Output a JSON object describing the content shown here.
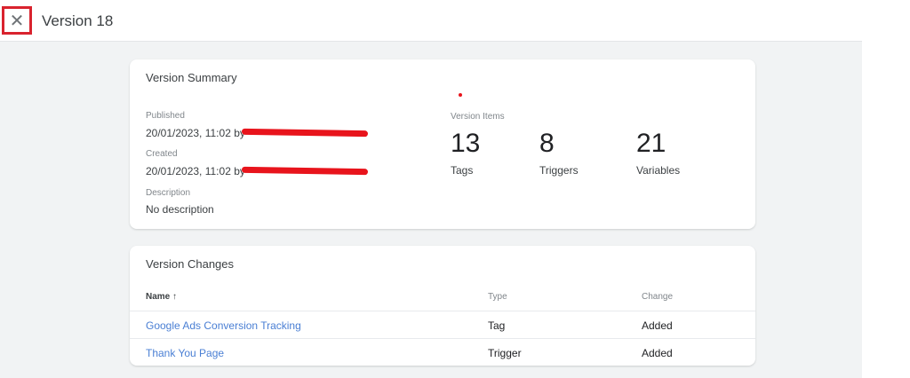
{
  "header": {
    "title": "Version 18",
    "close_icon": "close-icon"
  },
  "summary": {
    "title": "Version Summary",
    "published_label": "Published",
    "published_value": "20/01/2023, 11:02 by",
    "created_label": "Created",
    "created_value": "20/01/2023, 11:02 by",
    "description_label": "Description",
    "description_value": "No description",
    "items_label": "Version Items",
    "items": [
      {
        "count": "13",
        "label": "Tags"
      },
      {
        "count": "8",
        "label": "Triggers"
      },
      {
        "count": "21",
        "label": "Variables"
      }
    ]
  },
  "changes": {
    "title": "Version Changes",
    "columns": {
      "name": "Name",
      "type": "Type",
      "change": "Change"
    },
    "sort_icon": "arrow-up-icon",
    "rows": [
      {
        "name": "Google Ads Conversion Tracking",
        "type": "Tag",
        "change": "Added"
      },
      {
        "name": "Thank You Page",
        "type": "Trigger",
        "change": "Added"
      }
    ]
  },
  "colors": {
    "link": "#4a7fd4",
    "highlight": "#d9232e",
    "redaction": "#e8141c"
  }
}
